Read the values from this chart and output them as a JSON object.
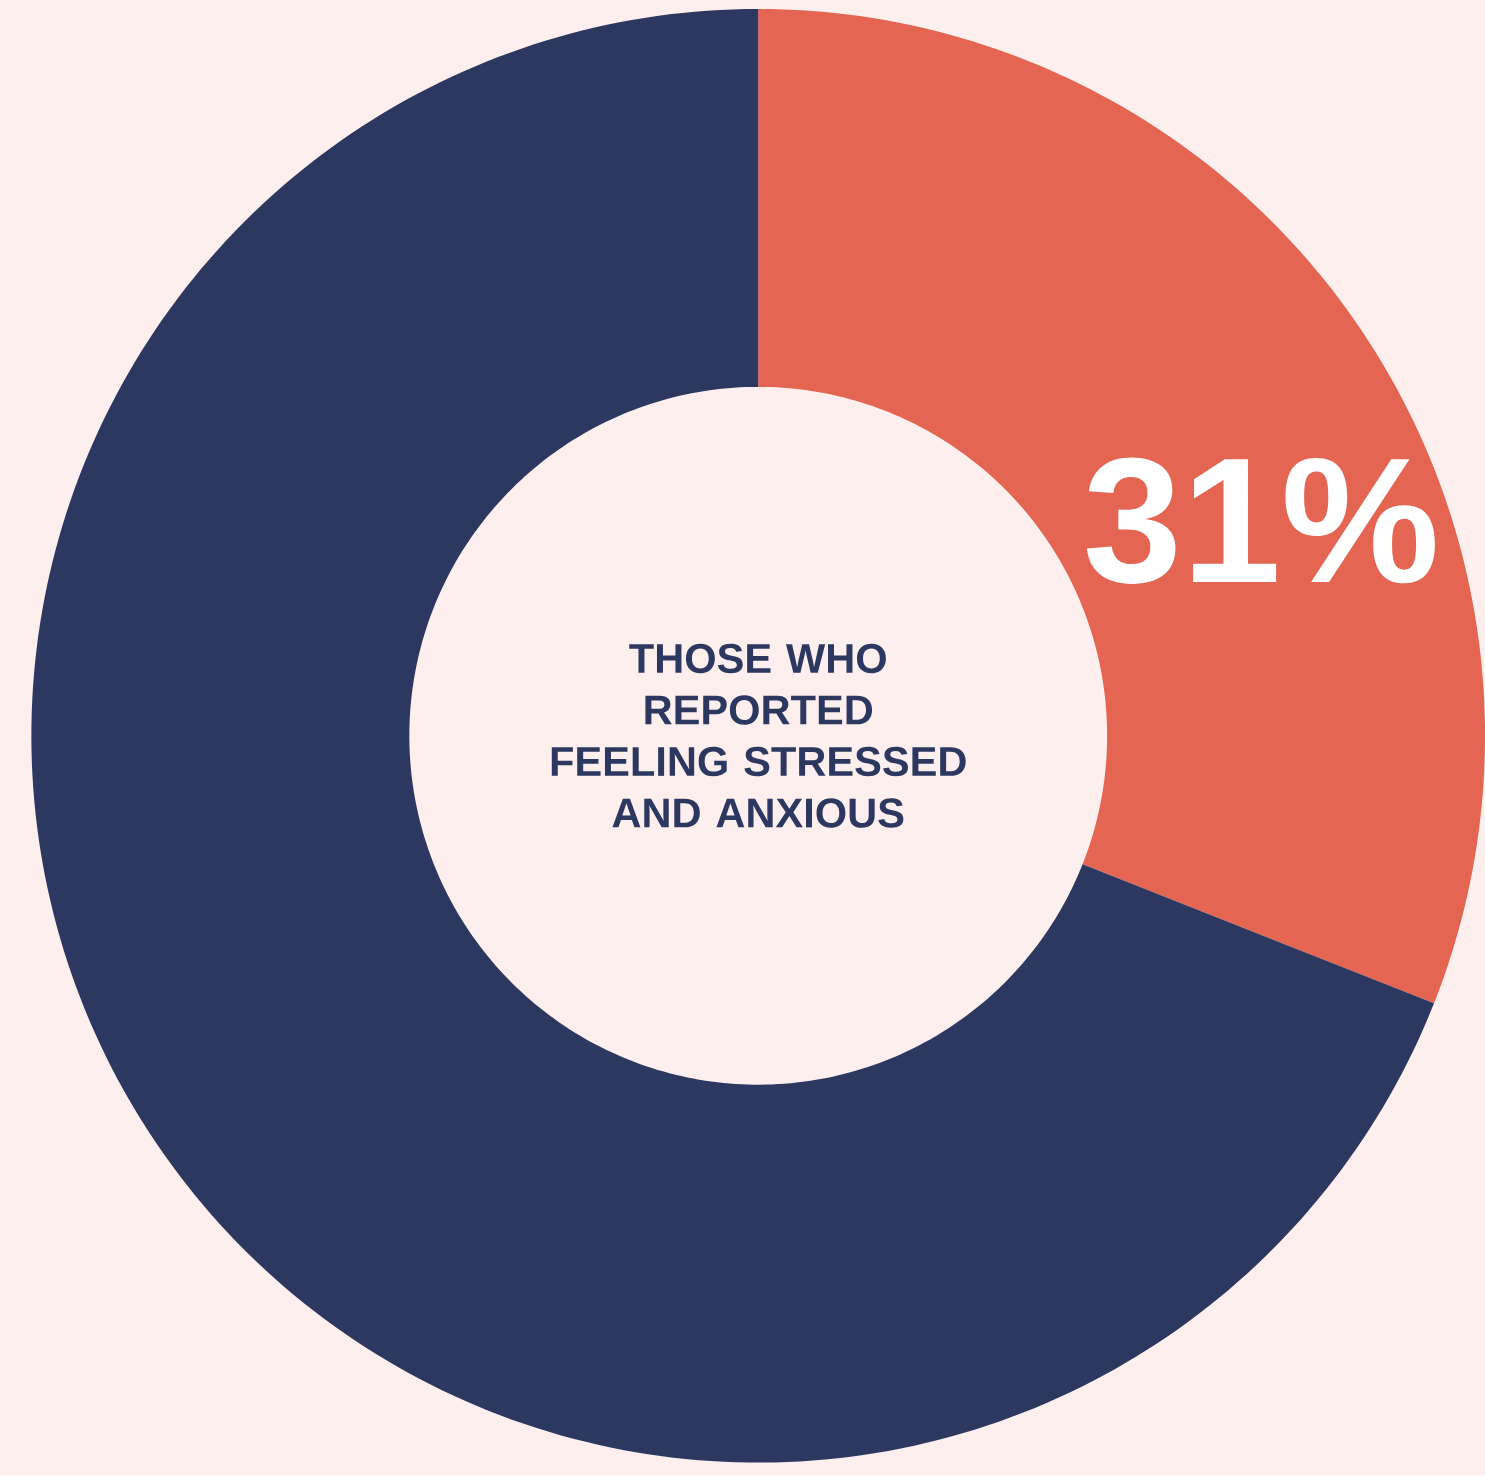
{
  "chart_data": {
    "type": "donut",
    "title": "THOSE WHO REPORTED FEELING STRESSED AND ANXIOUS",
    "categories": [
      null,
      null
    ],
    "values": [
      31,
      69
    ],
    "colors": [
      "#e46552",
      "#2c3860"
    ],
    "value_labels": [
      "31%",
      null
    ]
  }
}
